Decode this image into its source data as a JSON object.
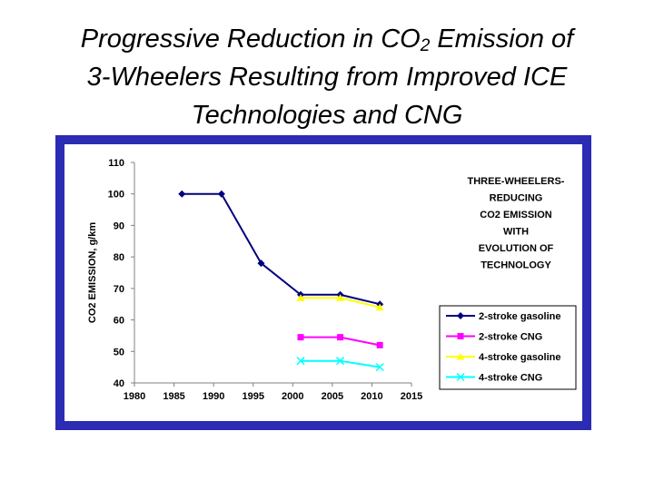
{
  "slide": {
    "title_part1": "Progressive Reduction in CO",
    "title_sub": "2",
    "title_part2": " Emission of",
    "title_line2": "3-Wheelers Resulting from Improved ICE",
    "title_line3": "Technologies and CNG"
  },
  "colors": {
    "frame": "#2b2bb4",
    "background": "#ffffff"
  },
  "chart_data": {
    "type": "line",
    "title": "",
    "xlabel": "",
    "ylabel": "CO2 EMISSION, g/km",
    "xlim": [
      1980,
      2015
    ],
    "ylim": [
      40,
      110
    ],
    "xticks": [
      1980,
      1985,
      1990,
      1995,
      2000,
      2005,
      2010,
      2015
    ],
    "yticks": [
      40,
      50,
      60,
      70,
      80,
      90,
      100,
      110
    ],
    "grid": false,
    "annotation": [
      "THREE-WHEELERS-",
      "REDUCING",
      "CO2 EMISSION",
      "WITH",
      "EVOLUTION OF",
      "TECHNOLOGY"
    ],
    "legend_position": "right",
    "series": [
      {
        "name": "2-stroke gasoline",
        "color": "#000080",
        "marker": "diamond",
        "x": [
          1986,
          1991,
          1996,
          2001,
          2006,
          2011
        ],
        "values": [
          100,
          100,
          78,
          68,
          68,
          65
        ]
      },
      {
        "name": "2-stroke CNG",
        "color": "#ff00ff",
        "marker": "square",
        "x": [
          2001,
          2006,
          2011
        ],
        "values": [
          54.5,
          54.5,
          52
        ]
      },
      {
        "name": "4-stroke gasoline",
        "color": "#ffff00",
        "marker": "triangle",
        "x": [
          2001,
          2006,
          2011
        ],
        "values": [
          67,
          67,
          64
        ]
      },
      {
        "name": "4-stroke CNG",
        "color": "#00ffff",
        "marker": "x",
        "x": [
          2001,
          2006,
          2011
        ],
        "values": [
          47,
          47,
          45
        ]
      }
    ]
  }
}
